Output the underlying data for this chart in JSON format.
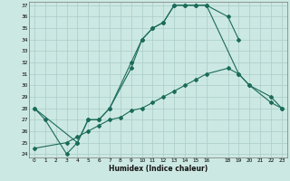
{
  "xlabel": "Humidex (Indice chaleur)",
  "bg_color": "#cce8e2",
  "grid_color": "#aaccc8",
  "line_color": "#1a6b5a",
  "xlim": [
    0,
    23
  ],
  "ylim": [
    24,
    37
  ],
  "xticks": [
    0,
    1,
    2,
    3,
    4,
    5,
    6,
    7,
    8,
    9,
    10,
    11,
    12,
    13,
    14,
    15,
    16,
    18,
    19,
    20,
    21,
    22,
    23
  ],
  "yticks": [
    24,
    25,
    26,
    27,
    28,
    29,
    30,
    31,
    32,
    33,
    34,
    35,
    36,
    37
  ],
  "line1_x": [
    0,
    1,
    3,
    4,
    5,
    6,
    7,
    9,
    10,
    11,
    12,
    13,
    14,
    15,
    16,
    18,
    19
  ],
  "line1_y": [
    28,
    27,
    24,
    25,
    27,
    27,
    28,
    31.5,
    34,
    35,
    35.5,
    37,
    37,
    37,
    37,
    36,
    34
  ],
  "line2_x": [
    0,
    4,
    5,
    6,
    7,
    9,
    10,
    11,
    12,
    13,
    14,
    15,
    16,
    19,
    20,
    22,
    23
  ],
  "line2_y": [
    28,
    25,
    27,
    27,
    28,
    32,
    34,
    35,
    35.5,
    37,
    37,
    37,
    37,
    31,
    30,
    29,
    28
  ],
  "line3_x": [
    0,
    3,
    4,
    5,
    6,
    7,
    8,
    9,
    10,
    11,
    12,
    13,
    14,
    15,
    16,
    18,
    19,
    20,
    22,
    23
  ],
  "line3_y": [
    24.5,
    25,
    25.5,
    26,
    26.5,
    27,
    27.2,
    27.8,
    28,
    28.5,
    29,
    29.5,
    30,
    30.5,
    31,
    31.5,
    31,
    30,
    28.5,
    28
  ]
}
